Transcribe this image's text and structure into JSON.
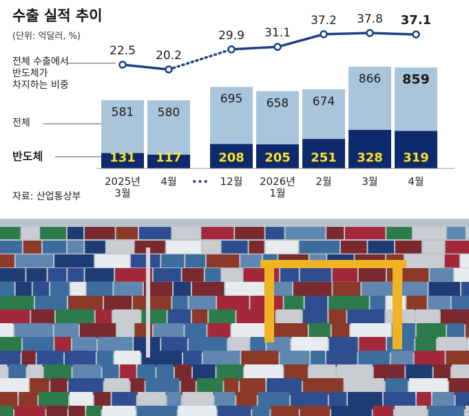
{
  "chart_data": {
    "type": "bar-line",
    "title": "수출 실적 추이",
    "subtitle": "(단위: 억달러, %)",
    "source": "자료: 산업통상부",
    "categories": [
      "2025년\n3월",
      "4월",
      "12월",
      "2026년\n1월",
      "2월",
      "3월",
      "4월"
    ],
    "break_marker": "•••",
    "break_after": 1,
    "series": [
      {
        "name": "전체",
        "color": "#a9c5dc",
        "values": [
          581,
          580,
          695,
          658,
          674,
          866,
          859
        ]
      },
      {
        "name": "반도체",
        "color": "#0e2a6c",
        "label_color": "#ffe41c",
        "values": [
          131,
          117,
          208,
          205,
          251,
          328,
          319
        ]
      },
      {
        "name": "전체 수출에서\n반도체가\n차지하는 비중",
        "color": "#1d3e80",
        "axis": "y2",
        "values": [
          22.5,
          20.2,
          29.9,
          31.1,
          37.2,
          37.8,
          37.1
        ]
      }
    ]
  }
}
